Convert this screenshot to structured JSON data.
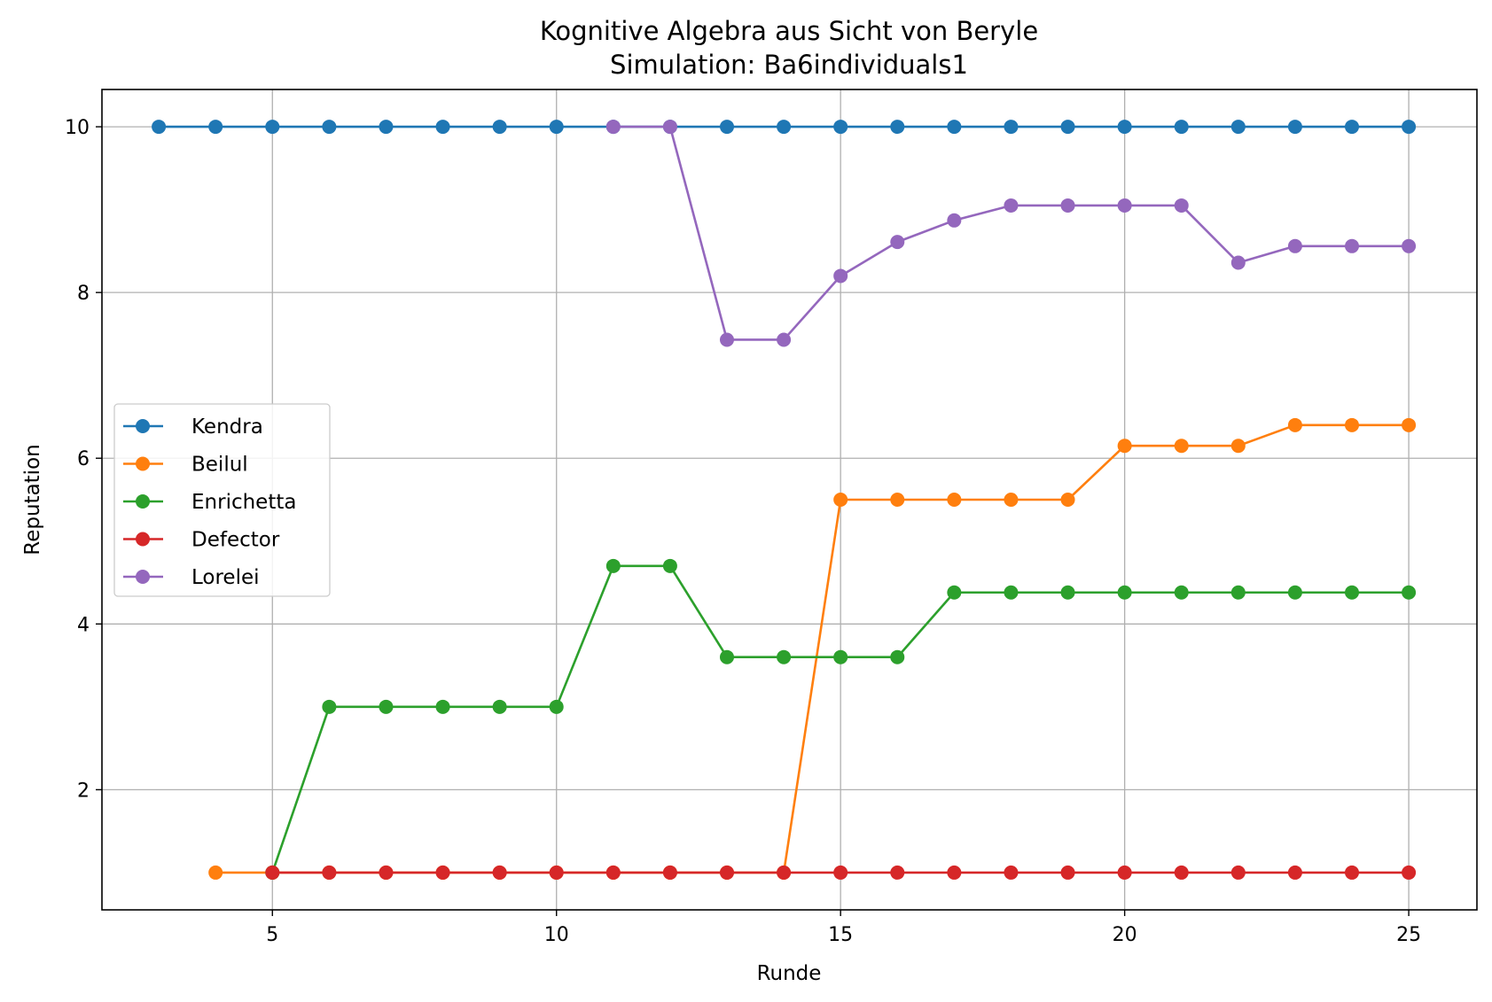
{
  "chart_data": {
    "type": "line",
    "title": "Kognitive Algebra aus Sicht von Beryle",
    "subtitle": "Simulation: Ba6individuals1",
    "xlabel": "Runde",
    "ylabel": "Reputation",
    "xlim": [
      2,
      26.2
    ],
    "ylim": [
      0.55,
      10.45
    ],
    "xticks": [
      5,
      10,
      15,
      20,
      25
    ],
    "yticks": [
      2,
      4,
      6,
      8,
      10
    ],
    "grid": true,
    "legend_position": "center-left",
    "series": [
      {
        "name": "Kendra",
        "color": "#1f77b4",
        "x": [
          3,
          4,
          5,
          6,
          7,
          8,
          9,
          10,
          11,
          12,
          13,
          14,
          15,
          16,
          17,
          18,
          19,
          20,
          21,
          22,
          23,
          24,
          25
        ],
        "y": [
          10,
          10,
          10,
          10,
          10,
          10,
          10,
          10,
          10,
          10,
          10,
          10,
          10,
          10,
          10,
          10,
          10,
          10,
          10,
          10,
          10,
          10,
          10
        ]
      },
      {
        "name": "Beilul",
        "color": "#ff7f0e",
        "x": [
          4,
          5,
          6,
          7,
          8,
          9,
          10,
          11,
          12,
          13,
          14,
          15,
          16,
          17,
          18,
          19,
          20,
          21,
          22,
          23,
          24,
          25
        ],
        "y": [
          1,
          1,
          1,
          1,
          1,
          1,
          1,
          1,
          1,
          1,
          1,
          5.5,
          5.5,
          5.5,
          5.5,
          5.5,
          6.15,
          6.15,
          6.15,
          6.4,
          6.4,
          6.4
        ]
      },
      {
        "name": "Enrichetta",
        "color": "#2ca02c",
        "x": [
          5,
          6,
          7,
          8,
          9,
          10,
          11,
          12,
          13,
          14,
          15,
          16,
          17,
          18,
          19,
          20,
          21,
          22,
          23,
          24,
          25
        ],
        "y": [
          1,
          3,
          3,
          3,
          3,
          3,
          4.7,
          4.7,
          3.6,
          3.6,
          3.6,
          3.6,
          4.38,
          4.38,
          4.38,
          4.38,
          4.38,
          4.38,
          4.38,
          4.38,
          4.38
        ]
      },
      {
        "name": "Defector",
        "color": "#d62728",
        "x": [
          5,
          6,
          7,
          8,
          9,
          10,
          11,
          12,
          13,
          14,
          15,
          16,
          17,
          18,
          19,
          20,
          21,
          22,
          23,
          24,
          25
        ],
        "y": [
          1,
          1,
          1,
          1,
          1,
          1,
          1,
          1,
          1,
          1,
          1,
          1,
          1,
          1,
          1,
          1,
          1,
          1,
          1,
          1,
          1
        ]
      },
      {
        "name": "Lorelei",
        "color": "#9467bd",
        "x": [
          11,
          12,
          13,
          14,
          15,
          16,
          17,
          18,
          19,
          20,
          21,
          22,
          23,
          24,
          25
        ],
        "y": [
          10,
          10,
          7.43,
          7.43,
          8.2,
          8.61,
          8.87,
          9.05,
          9.05,
          9.05,
          9.05,
          8.36,
          8.56,
          8.56,
          8.56
        ]
      }
    ]
  }
}
